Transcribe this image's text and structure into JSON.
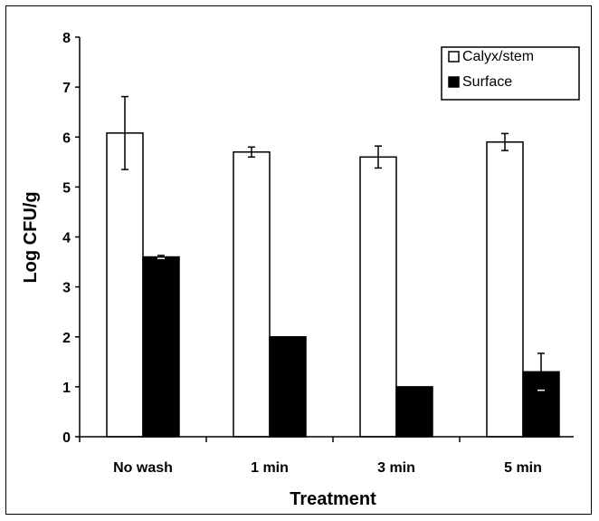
{
  "chart_data": {
    "type": "bar",
    "title": "",
    "xlabel": "Treatment",
    "ylabel": "Log CFU/g",
    "categories": [
      "No wash",
      "1 min",
      "3 min",
      "5 min"
    ],
    "ylim": [
      0,
      8
    ],
    "yticks": [
      0,
      1,
      2,
      3,
      4,
      5,
      6,
      7,
      8
    ],
    "grid": false,
    "legend_position": "top-right",
    "series": [
      {
        "name": "Calyx/stem",
        "values": [
          6.08,
          5.7,
          5.6,
          5.9
        ],
        "errors": [
          0.73,
          0.1,
          0.22,
          0.17
        ],
        "color": "#ffffff"
      },
      {
        "name": "Surface",
        "values": [
          3.6,
          2.0,
          1.0,
          1.3
        ],
        "errors": [
          0.03,
          0,
          0,
          0.37
        ],
        "color": "#000000"
      }
    ]
  }
}
